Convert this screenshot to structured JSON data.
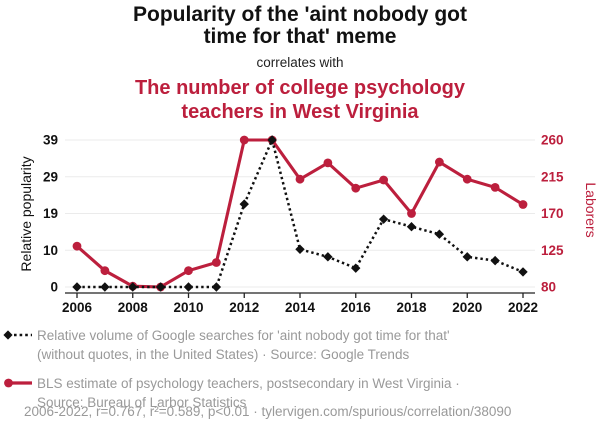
{
  "header": {
    "title": "Popularity of the 'aint nobody got time for that' meme",
    "connector": "correlates with",
    "subtitle": "The number of college psychology teachers in West Virginia"
  },
  "colors": {
    "accent_red": "#bc1f3d",
    "series_black": "#111111",
    "legend_gray": "#999999",
    "gridline": "#ebebeb",
    "axis": "#222222",
    "tick_label": "#111111"
  },
  "legend": {
    "google": {
      "line1": "Relative volume of Google searches for 'aint nobody got time for that'",
      "line2": "(without quotes, in the United States) · Source: Google Trends"
    },
    "bls": {
      "line1": "BLS estimate of psychology teachers, postsecondary in West Virginia ·",
      "line2": "Source: Bureau of Larbor Statistics"
    }
  },
  "footer": "2006-2022, r=0.767, r²=0.589, p<0.01 · tylervigen.com/spurious/correlation/38090",
  "chart_data": {
    "type": "line",
    "x": [
      2006,
      2007,
      2008,
      2009,
      2010,
      2011,
      2012,
      2013,
      2014,
      2015,
      2016,
      2017,
      2018,
      2019,
      2020,
      2021,
      2022
    ],
    "x_ticks": [
      2006,
      2008,
      2010,
      2012,
      2014,
      2016,
      2018,
      2020,
      2022
    ],
    "grid": "horizontal",
    "left_axis": {
      "label": "Relative popularity",
      "ticks": [
        0,
        10,
        19,
        29,
        39
      ],
      "range": [
        0,
        39
      ]
    },
    "right_axis": {
      "label": "Laborers",
      "ticks": [
        80,
        125,
        170,
        215,
        260
      ],
      "range": [
        80,
        260
      ]
    },
    "series": [
      {
        "name": "Relative volume of Google searches for 'aint nobody got time for that'",
        "axis": "left",
        "color": "#111111",
        "style": "dotted-diamond",
        "values": [
          0,
          0,
          0,
          0,
          0,
          0,
          22,
          39,
          10,
          8,
          5,
          18,
          16,
          14,
          8,
          7,
          4
        ]
      },
      {
        "name": "BLS estimate of psychology teachers, postsecondary in West Virginia",
        "axis": "right",
        "color": "#bc1f3d",
        "style": "solid-circle",
        "values": [
          130,
          100,
          81,
          80,
          100,
          110,
          260,
          260,
          212,
          232,
          201,
          211,
          170,
          233,
          212,
          202,
          181
        ]
      }
    ]
  }
}
